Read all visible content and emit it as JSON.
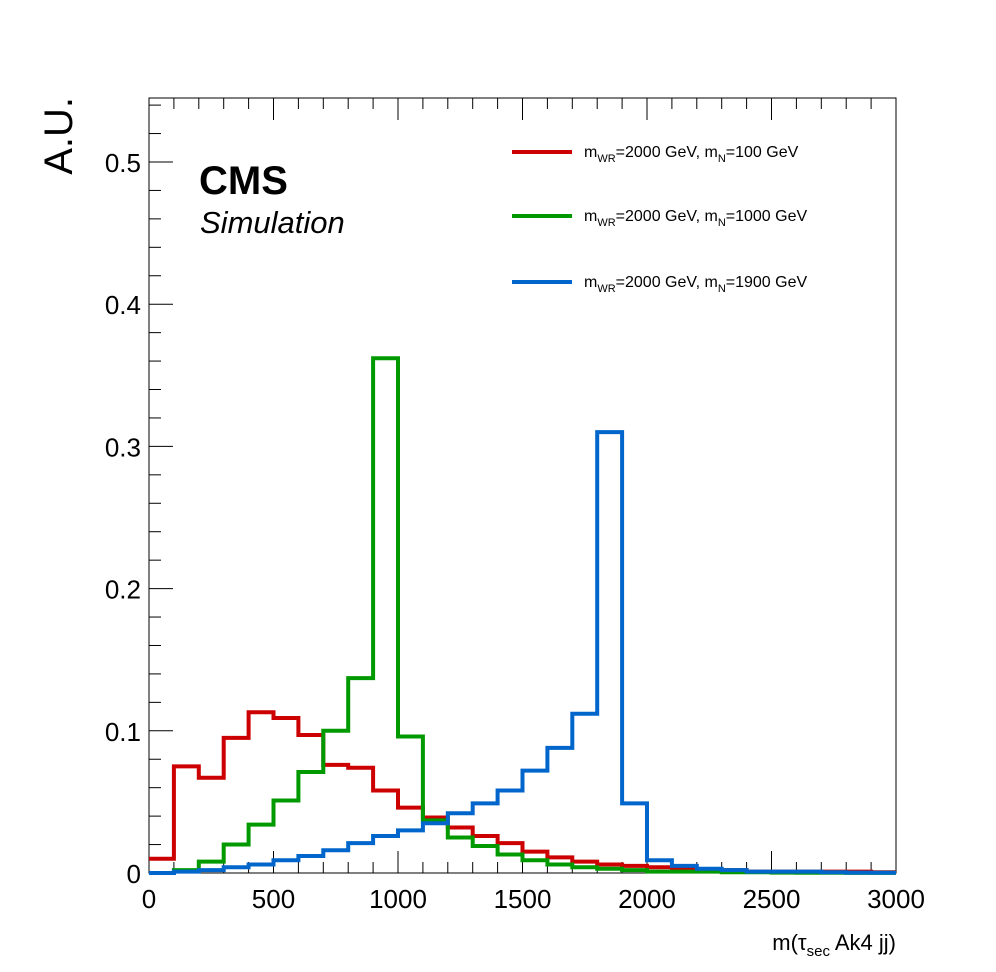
{
  "chart_data": {
    "type": "line",
    "title": "",
    "xlabel_parts": {
      "pre": "m(",
      "symbol": "τ",
      "sub": "sec",
      "post": " Ak4 jj)"
    },
    "ylabel": "A.U.",
    "xlim": [
      0,
      3000
    ],
    "ylim": [
      0,
      0.545
    ],
    "x_ticks": [
      0,
      500,
      1000,
      1500,
      2000,
      2500,
      3000
    ],
    "x_tick_labels": [
      "0",
      "500",
      "1000",
      "1500",
      "2000",
      "2500",
      "3000"
    ],
    "y_ticks": [
      0,
      0.1,
      0.2,
      0.3,
      0.4,
      0.5
    ],
    "y_tick_labels": [
      "0",
      "0.1",
      "0.2",
      "0.3",
      "0.4",
      "0.5"
    ],
    "bin_edges": [
      0,
      100,
      200,
      300,
      400,
      500,
      600,
      700,
      800,
      900,
      1000,
      1100,
      1200,
      1300,
      1400,
      1500,
      1600,
      1700,
      1800,
      1900,
      2000,
      2100,
      2200,
      2300,
      2400,
      2500,
      2600,
      2700,
      2800,
      2900,
      3000
    ],
    "grid": false,
    "legend_position": "top-right",
    "series": [
      {
        "name": "mWR=2000 GeV, mN=100 GeV",
        "label_parts": {
          "m1": "m",
          "s1": "WR",
          "t1": "=2000 GeV, ",
          "m2": "m",
          "s2": "N",
          "t2": "=100 GeV"
        },
        "color": "#cc0000",
        "values": [
          0.01,
          0.075,
          0.067,
          0.095,
          0.113,
          0.109,
          0.097,
          0.076,
          0.074,
          0.058,
          0.046,
          0.039,
          0.032,
          0.026,
          0.021,
          0.015,
          0.011,
          0.008,
          0.006,
          0.005,
          0.004,
          0.003,
          0.002,
          0.002,
          0.001,
          0.001,
          0.001,
          0.001,
          0.001,
          0.0005
        ]
      },
      {
        "name": "mWR=2000 GeV, mN=1000 GeV",
        "label_parts": {
          "m1": "m",
          "s1": "WR",
          "t1": "=2000 GeV, ",
          "m2": "m",
          "s2": "N",
          "t2": "=1000 GeV"
        },
        "color": "#009900",
        "values": [
          0.0,
          0.002,
          0.008,
          0.02,
          0.034,
          0.051,
          0.071,
          0.1,
          0.137,
          0.362,
          0.096,
          0.037,
          0.025,
          0.019,
          0.013,
          0.009,
          0.006,
          0.004,
          0.003,
          0.002,
          0.001,
          0.001,
          0.001,
          0.0005,
          0.0005,
          0.0003,
          0.0002,
          0.0002,
          0.0001,
          0.0001
        ]
      },
      {
        "name": "mWR=2000 GeV, mN=1900 GeV",
        "label_parts": {
          "m1": "m",
          "s1": "WR",
          "t1": "=2000 GeV, ",
          "m2": "m",
          "s2": "N",
          "t2": "=1900 GeV"
        },
        "color": "#0066cc",
        "values": [
          0.0,
          0.001,
          0.002,
          0.004,
          0.006,
          0.009,
          0.012,
          0.016,
          0.021,
          0.026,
          0.03,
          0.035,
          0.042,
          0.049,
          0.058,
          0.072,
          0.088,
          0.112,
          0.31,
          0.049,
          0.009,
          0.005,
          0.003,
          0.002,
          0.001,
          0.001,
          0.001,
          0.0005,
          0.0003,
          0.0002
        ]
      }
    ],
    "annotations": {
      "experiment": "CMS",
      "status": "Simulation"
    }
  }
}
